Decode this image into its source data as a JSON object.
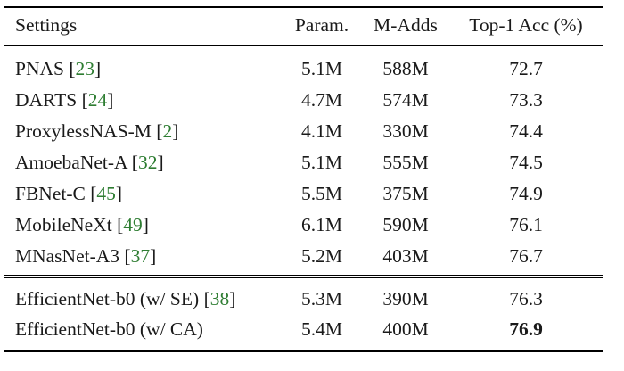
{
  "header": {
    "settings": "Settings",
    "param": "Param.",
    "madds": "M-Adds",
    "acc": "Top-1 Acc (%)"
  },
  "rows": [
    {
      "name": "PNAS ",
      "ref": "23",
      "param": "5.1M",
      "madds": "588M",
      "acc": "72.7"
    },
    {
      "name": "DARTS ",
      "ref": "24",
      "param": "4.7M",
      "madds": "574M",
      "acc": "73.3"
    },
    {
      "name": "ProxylessNAS-M ",
      "ref": "2",
      "param": "4.1M",
      "madds": "330M",
      "acc": "74.4"
    },
    {
      "name": "AmoebaNet-A ",
      "ref": "32",
      "param": "5.1M",
      "madds": "555M",
      "acc": "74.5"
    },
    {
      "name": "FBNet-C ",
      "ref": "45",
      "param": "5.5M",
      "madds": "375M",
      "acc": "74.9"
    },
    {
      "name": "MobileNeXt ",
      "ref": "49",
      "param": "6.1M",
      "madds": "590M",
      "acc": "76.1"
    },
    {
      "name": "MNasNet-A3 ",
      "ref": "37",
      "param": "5.2M",
      "madds": "403M",
      "acc": "76.7"
    }
  ],
  "rows2": [
    {
      "name": "EfficientNet-b0 (w/ SE) ",
      "ref": "38",
      "param": "5.3M",
      "madds": "390M",
      "acc": "76.3"
    },
    {
      "name": "EfficientNet-b0 (w/ CA)",
      "param": "5.4M",
      "madds": "400M",
      "acc": "76.9"
    }
  ],
  "colors": {
    "citation": "#2e7d32",
    "text": "#1a1a1a"
  }
}
